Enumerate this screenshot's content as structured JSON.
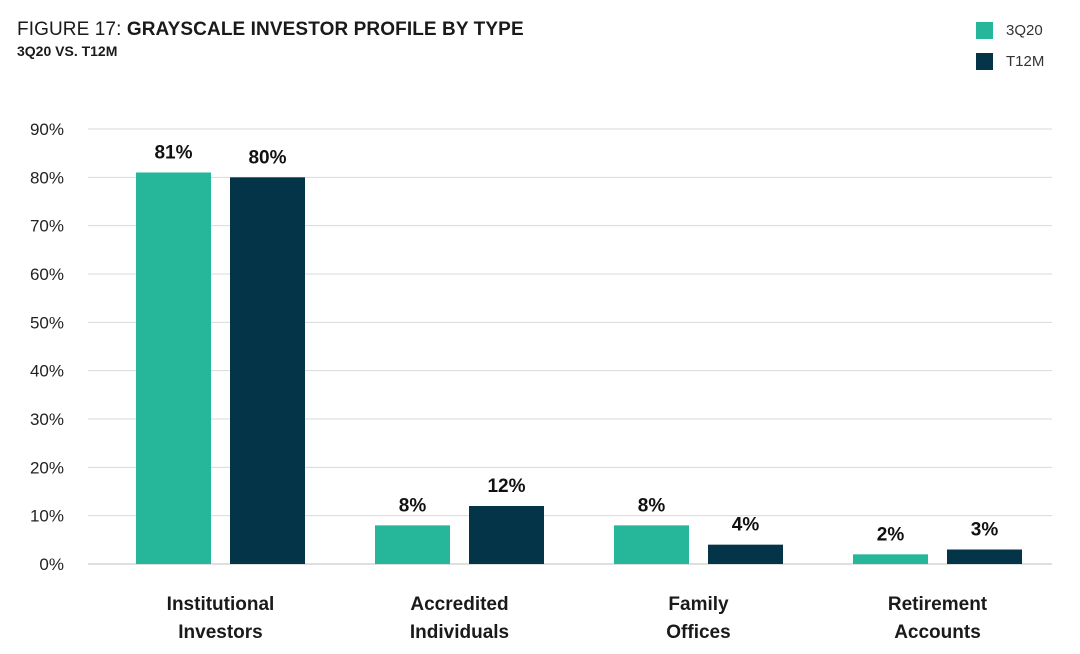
{
  "header": {
    "figure_label": "FIGURE 17: ",
    "title": "GRAYSCALE INVESTOR PROFILE BY TYPE",
    "subtitle": "3Q20 VS. T12M"
  },
  "colors": {
    "series_3q20": "#26b79a",
    "series_t12m": "#033447",
    "grid": "#d9d9d9",
    "text": "#1a1a1a"
  },
  "chart_data": {
    "type": "bar",
    "title": "GRAYSCALE INVESTOR PROFILE BY TYPE",
    "subtitle": "3Q20 VS. T12M",
    "categories": [
      [
        "Institutional",
        "Investors"
      ],
      [
        "Accredited",
        "Individuals"
      ],
      [
        "Family",
        "Offices"
      ],
      [
        "Retirement",
        "Accounts"
      ]
    ],
    "series": [
      {
        "name": "3Q20",
        "values": [
          81,
          8,
          8,
          2
        ],
        "labels": [
          "81%",
          "8%",
          "8%",
          "2%"
        ],
        "color": "#26b79a"
      },
      {
        "name": "T12M",
        "values": [
          80,
          12,
          4,
          3
        ],
        "labels": [
          "80%",
          "12%",
          "4%",
          "3%"
        ],
        "color": "#033447"
      }
    ],
    "ylim": [
      0,
      90
    ],
    "yticks": [
      0,
      10,
      20,
      30,
      40,
      50,
      60,
      70,
      80,
      90
    ],
    "ytick_labels": [
      "0%",
      "10%",
      "20%",
      "30%",
      "40%",
      "50%",
      "60%",
      "70%",
      "80%",
      "90%"
    ],
    "xlabel": "",
    "ylabel": "",
    "grid": true,
    "legend_position": "top-right"
  }
}
